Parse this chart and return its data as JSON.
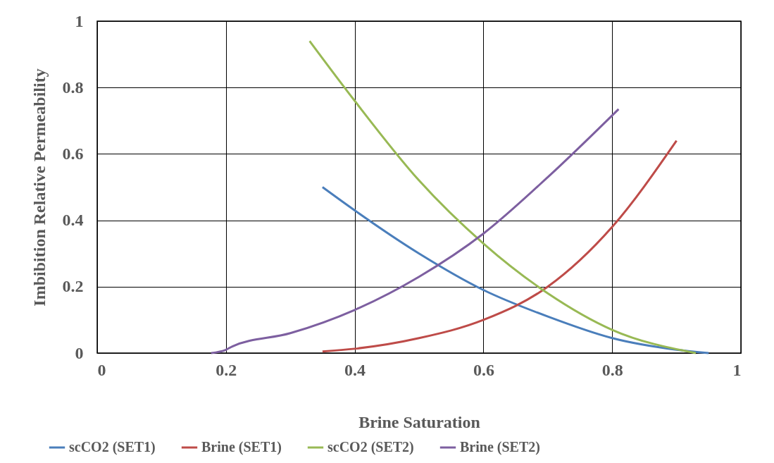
{
  "chart_data": {
    "type": "line",
    "xlabel": "Brine Saturation",
    "ylabel": "Imbibition  Relative Permeability",
    "xlim": [
      0,
      1
    ],
    "ylim": [
      0,
      1
    ],
    "xticks": [
      0,
      0.2,
      0.4,
      0.6,
      0.8,
      1
    ],
    "yticks": [
      0,
      0.2,
      0.4,
      0.6,
      0.8,
      1
    ],
    "grid": true,
    "legend": "bottom",
    "series": [
      {
        "name": "scCO2 (SET1)",
        "color": "#4a7ebb",
        "x": [
          0.35,
          0.4,
          0.5,
          0.6,
          0.7,
          0.8,
          0.9,
          0.95
        ],
        "values": [
          0.5,
          0.43,
          0.3,
          0.19,
          0.11,
          0.045,
          0.01,
          0.0
        ]
      },
      {
        "name": "Brine (SET1)",
        "color": "#be4b48",
        "x": [
          0.35,
          0.4,
          0.5,
          0.6,
          0.7,
          0.8,
          0.9
        ],
        "values": [
          0.005,
          0.013,
          0.045,
          0.1,
          0.2,
          0.38,
          0.64
        ]
      },
      {
        "name": "scCO2 (SET2)",
        "color": "#98b954",
        "x": [
          0.33,
          0.4,
          0.5,
          0.6,
          0.7,
          0.8,
          0.93
        ],
        "values": [
          0.94,
          0.76,
          0.52,
          0.33,
          0.18,
          0.07,
          0.0
        ]
      },
      {
        "name": "Brine (SET2)",
        "color": "#7d5fa0",
        "x": [
          0.177,
          0.2,
          0.21,
          0.3,
          0.4,
          0.5,
          0.6,
          0.7,
          0.81
        ],
        "values": [
          0,
          0.01,
          0.02,
          0.06,
          0.13,
          0.23,
          0.36,
          0.53,
          0.735
        ]
      }
    ]
  }
}
